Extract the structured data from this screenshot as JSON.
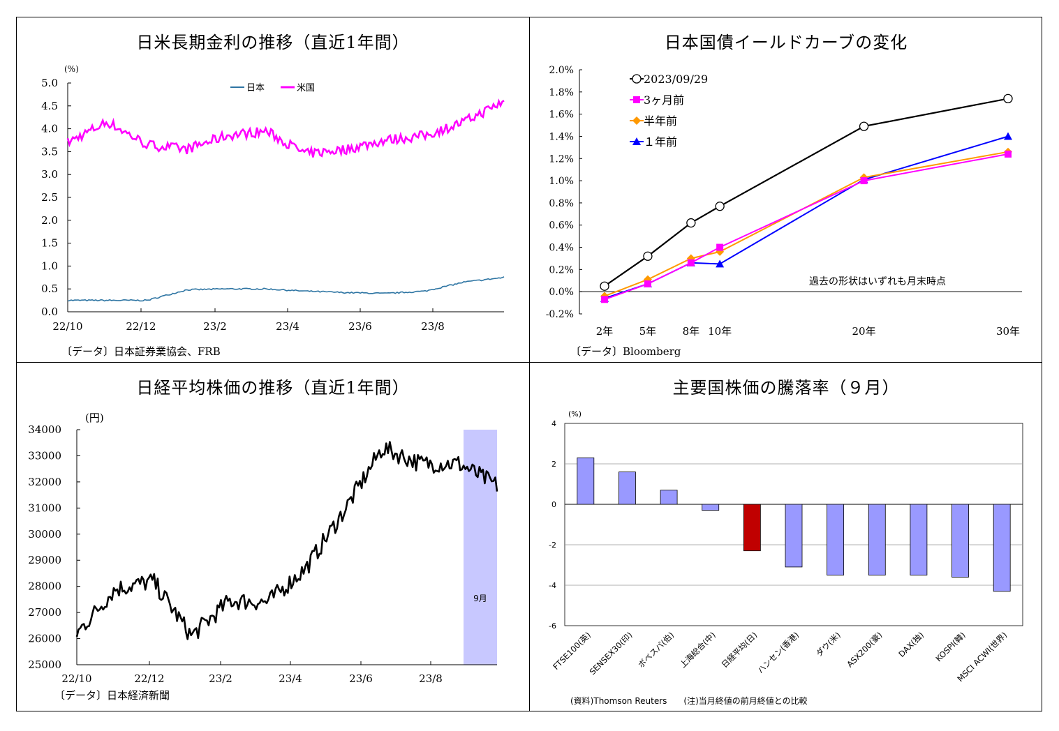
{
  "charts": [
    {
      "title": "日米長期金利の推移（直近1年間）",
      "source": "〔データ〕日本証券業協会、FRB",
      "unit": "(%)",
      "y_ticks": [
        "0.0",
        "0.5",
        "1.0",
        "1.5",
        "2.0",
        "2.5",
        "3.0",
        "3.5",
        "4.0",
        "4.5",
        "5.0"
      ],
      "x_ticks": [
        "22/10",
        "22/12",
        "23/2",
        "23/4",
        "23/6",
        "23/8"
      ],
      "legend": [
        "日本",
        "米国"
      ],
      "colors": {
        "japan": "#2e75a3",
        "us": "#ff00ff"
      }
    },
    {
      "title": "日本国債イールドカーブの変化",
      "source": "〔データ〕Bloomberg",
      "note": "過去の形状はいずれも月末時点",
      "y_ticks": [
        "-0.2%",
        "0.0%",
        "0.2%",
        "0.4%",
        "0.6%",
        "0.8%",
        "1.0%",
        "1.2%",
        "1.4%",
        "1.6%",
        "1.8%",
        "2.0%"
      ],
      "x_ticks": [
        "2年",
        "5年",
        "8年",
        "10年",
        "20年",
        "30年"
      ],
      "legend": [
        "2023/09/29",
        "3ヶ月前",
        "半年前",
        "１年前"
      ]
    },
    {
      "title": "日経平均株価の推移（直近1年間）",
      "source": "〔データ〕日本経済新聞",
      "unit": "(円)",
      "y_ticks": [
        "25000",
        "26000",
        "27000",
        "28000",
        "29000",
        "30000",
        "31000",
        "32000",
        "33000",
        "34000"
      ],
      "x_ticks": [
        "22/10",
        "22/12",
        "23/2",
        "23/4",
        "23/6",
        "23/8"
      ],
      "highlight_label": "9月"
    },
    {
      "title": "主要国株価の騰落率（９月）",
      "source": "(資料)Thomson Reuters　　(注)当月終値の前月終値との比較",
      "unit": "(%)",
      "y_ticks": [
        "-6",
        "-4",
        "-2",
        "0",
        "2",
        "4"
      ]
    }
  ],
  "chart_data": [
    {
      "type": "line",
      "title": "日米長期金利の推移（直近1年間）",
      "ylabel": "(%)",
      "ylim": [
        0,
        5
      ],
      "x_range": [
        "2022-10",
        "2023-09-29"
      ],
      "series": [
        {
          "name": "日本",
          "x": [
            "22/10",
            "22/11",
            "22/12",
            "23/1",
            "23/2",
            "23/3",
            "23/4",
            "23/5",
            "23/6",
            "23/7",
            "23/8",
            "23/9"
          ],
          "values": [
            0.25,
            0.25,
            0.25,
            0.48,
            0.5,
            0.5,
            0.45,
            0.42,
            0.4,
            0.45,
            0.65,
            0.75
          ]
        },
        {
          "name": "米国",
          "x": [
            "22/10",
            "22/11",
            "22/12",
            "23/1",
            "23/2",
            "23/3",
            "23/4",
            "23/5",
            "23/6",
            "23/7",
            "23/8",
            "23/9"
          ],
          "values": [
            3.7,
            4.15,
            3.65,
            3.55,
            3.85,
            3.95,
            3.45,
            3.55,
            3.75,
            3.85,
            4.15,
            4.6
          ]
        }
      ]
    },
    {
      "type": "line",
      "title": "日本国債イールドカーブの変化",
      "categories": [
        "2年",
        "5年",
        "8年",
        "10年",
        "20年",
        "30年"
      ],
      "category_years": [
        2,
        5,
        8,
        10,
        20,
        30
      ],
      "ylim": [
        -0.2,
        2.0
      ],
      "series": [
        {
          "name": "2023/09/29",
          "values": [
            0.05,
            0.32,
            0.62,
            0.77,
            1.49,
            1.74
          ],
          "color": "#000000",
          "marker": "circle"
        },
        {
          "name": "3ヶ月前",
          "values": [
            -0.07,
            0.07,
            0.26,
            0.4,
            1.0,
            1.24
          ],
          "color": "#ff00ff",
          "marker": "square"
        },
        {
          "name": "半年前",
          "values": [
            -0.04,
            0.11,
            0.3,
            0.36,
            1.03,
            1.26
          ],
          "color": "#ff9900",
          "marker": "diamond"
        },
        {
          "name": "１年前",
          "values": [
            -0.06,
            0.07,
            0.26,
            0.25,
            1.01,
            1.4
          ],
          "color": "#0000ff",
          "marker": "triangle"
        }
      ]
    },
    {
      "type": "line",
      "title": "日経平均株価の推移（直近1年間）",
      "ylabel": "(円)",
      "ylim": [
        25000,
        34000
      ],
      "series": [
        {
          "name": "",
          "x": [
            "22/10",
            "22/11",
            "22/12",
            "23/1",
            "23/2",
            "23/3",
            "23/4",
            "23/5",
            "23/6",
            "23/7",
            "23/8",
            "23/9"
          ],
          "values": [
            26200,
            27900,
            28200,
            26100,
            27450,
            27400,
            28700,
            30900,
            33300,
            32700,
            32700,
            31857
          ]
        }
      ],
      "highlight": {
        "label": "9月",
        "from": "2023-09-01",
        "to": "2023-09-29"
      }
    },
    {
      "type": "bar",
      "title": "主要国株価の騰落率（９月）",
      "ylabel": "(%)",
      "ylim": [
        -6,
        4
      ],
      "categories": [
        "FTSE100(英)",
        "SENSEX30(印)",
        "ボベスパ(伯)",
        "上海総合(中)",
        "日経平均(日)",
        "ハンセン(香港)",
        "ダウ(米)",
        "ASX200(豪)",
        "DAX(独)",
        "KOSPI(韓)",
        "MSCI ACWI(世界)"
      ],
      "values": [
        2.3,
        1.6,
        0.7,
        -0.3,
        -2.3,
        -3.1,
        -3.5,
        -3.5,
        -3.5,
        -3.6,
        -4.3
      ],
      "colors": {
        "default": "#9999ff",
        "highlight": "#c00000"
      }
    }
  ]
}
